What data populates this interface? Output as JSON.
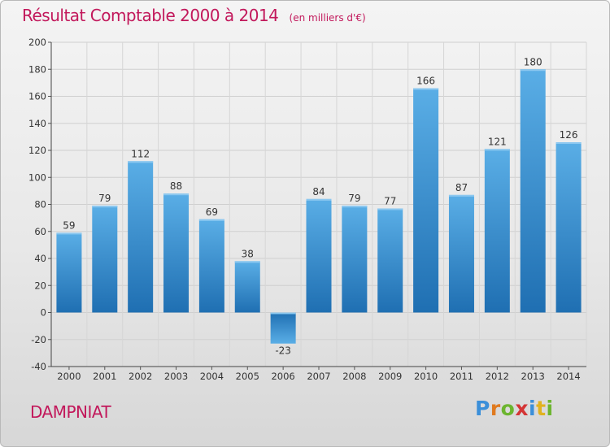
{
  "title": "Résultat Comptable 2000 à 2014",
  "unit_note": "(en milliers d'€)",
  "place": "DAMPNIAT",
  "logo": {
    "letters": [
      "P",
      "r",
      "o",
      "x",
      "i",
      "t",
      "i"
    ],
    "colors": [
      "#3b8fd9",
      "#e07a1f",
      "#6cb52f",
      "#d43535",
      "#3b8fd9",
      "#e0b21f",
      "#6cb52f"
    ]
  },
  "colors": {
    "title": "#c2185b",
    "bar_light": "#5aaee6",
    "bar_dark": "#1f6fb2"
  },
  "chart_data": {
    "type": "bar",
    "categories": [
      "2000",
      "2001",
      "2002",
      "2003",
      "2004",
      "2005",
      "2006",
      "2007",
      "2008",
      "2009",
      "2010",
      "2011",
      "2012",
      "2013",
      "2014"
    ],
    "values": [
      59,
      79,
      112,
      88,
      69,
      38,
      -23,
      84,
      79,
      77,
      166,
      87,
      121,
      180,
      126
    ],
    "ylim": [
      -40,
      200
    ],
    "yticks": [
      -40,
      -20,
      0,
      20,
      40,
      60,
      80,
      100,
      120,
      140,
      160,
      180,
      200
    ],
    "grid": true,
    "data_labels": true
  }
}
